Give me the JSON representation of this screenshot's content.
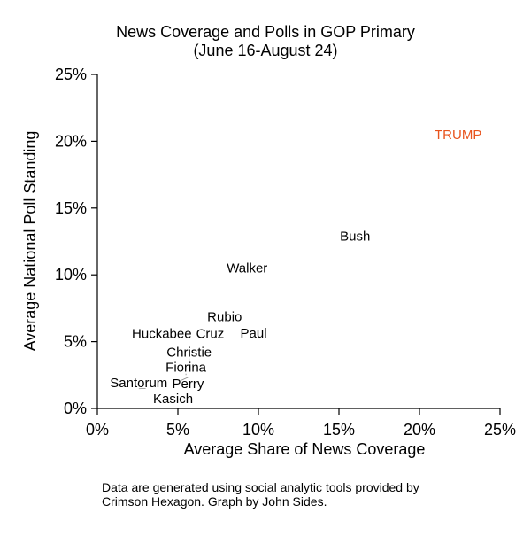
{
  "chart_data": {
    "type": "scatter",
    "title": "News Coverage and Polls in GOP Primary",
    "subtitle": "(June 16-August 24)",
    "xlabel": "Average Share of News Coverage",
    "ylabel": "Average National Poll Standing",
    "xlim": [
      0,
      25
    ],
    "ylim": [
      0,
      25
    ],
    "xticks": [
      0,
      5,
      10,
      15,
      20,
      25
    ],
    "yticks": [
      0,
      5,
      10,
      15,
      20,
      25
    ],
    "xtick_labels": [
      "0%",
      "5%",
      "10%",
      "15%",
      "20%",
      "25%"
    ],
    "ytick_labels": [
      "0%",
      "5%",
      "10%",
      "15%",
      "20%",
      "25%"
    ],
    "grid": false,
    "marker": "text-label",
    "points": [
      {
        "label": "TRUMP",
        "x": 22.4,
        "y": 20.5,
        "color": "#e8541e"
      },
      {
        "label": "Bush",
        "x": 16.0,
        "y": 12.9,
        "color": "#000000"
      },
      {
        "label": "Walker",
        "x": 9.3,
        "y": 10.5,
        "color": "#000000"
      },
      {
        "label": "Rubio",
        "x": 7.9,
        "y": 6.8,
        "color": "#000000"
      },
      {
        "label": "Huckabee",
        "x": 4.0,
        "y": 5.6,
        "color": "#000000"
      },
      {
        "label": "Cruz",
        "x": 7.0,
        "y": 5.6,
        "color": "#000000"
      },
      {
        "label": "Paul",
        "x": 9.7,
        "y": 5.7,
        "color": "#000000"
      },
      {
        "label": "Christie",
        "x": 5.7,
        "y": 3.2,
        "color": "#000000"
      },
      {
        "label": "Kasich",
        "x": 4.7,
        "y": 2.5,
        "color": "#000000"
      },
      {
        "label": "Fiorina",
        "x": 5.5,
        "y": 2.5,
        "color": "#000000"
      },
      {
        "label": "Perry",
        "x": 5.2,
        "y": 2.1,
        "color": "#000000"
      },
      {
        "label": "Santorum",
        "x": 3.0,
        "y": 1.5,
        "color": "#000000"
      }
    ],
    "caption": [
      "Data are generated using social analytic tools provided by",
      "Crimson Hexagon. Graph by John Sides."
    ]
  }
}
